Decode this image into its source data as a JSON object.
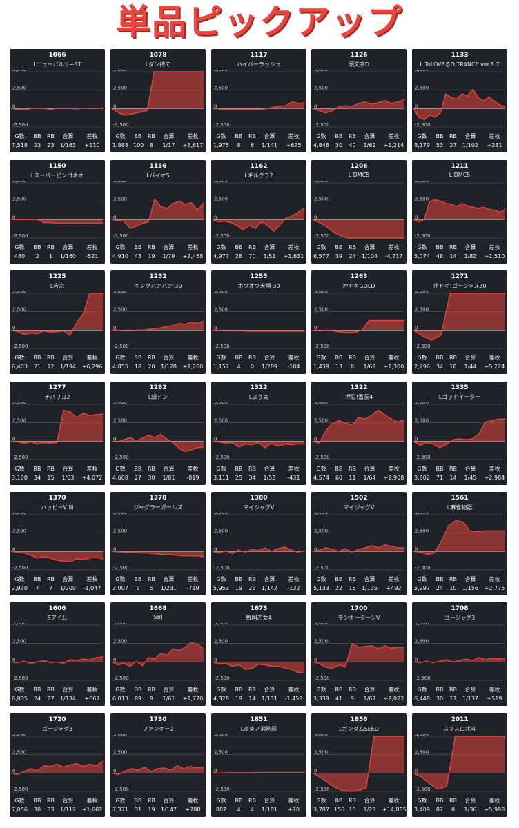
{
  "page_title": "単品ピックアップ",
  "stat_headers": [
    "G数",
    "BB",
    "RB",
    "合算",
    "差枚"
  ],
  "y_ticks": [
    "5,000",
    "2,500",
    "0",
    "-2,500"
  ],
  "colors": {
    "background": "#1f2229",
    "line": "#e2463c",
    "fill": "#e2463c",
    "grid": "#5a5e66",
    "title": "#e8463f"
  },
  "chart_data": [
    {
      "type": "area",
      "id": "1066",
      "name": "Lニューパルサ−BT",
      "ylim": [
        -2500,
        5000
      ],
      "y": [
        0,
        -100,
        -200,
        0,
        50,
        0,
        -100,
        0,
        0,
        0,
        -50,
        50,
        0,
        0,
        100
      ],
      "stats": {
        "g": "7,518",
        "bb": "23",
        "rb": "23",
        "gosan": "1/163",
        "samai": "+110"
      }
    },
    {
      "type": "area",
      "id": "1078",
      "name": "Lダン持て",
      "ylim": [
        -2500,
        5000
      ],
      "y": [
        0,
        -600,
        -900,
        -700,
        -500,
        -300,
        5000,
        5000,
        5000,
        5000,
        5000,
        5000,
        5000,
        5000
      ],
      "stats": {
        "g": "1,888",
        "bb": "100",
        "rb": "8",
        "gosan": "1/17",
        "samai": "+5,617"
      }
    },
    {
      "type": "area",
      "id": "1117",
      "name": "ハイパーラッシュ",
      "ylim": [
        -2500,
        5000
      ],
      "y": [
        0,
        -50,
        -100,
        -100,
        -100,
        -100,
        -100,
        -100,
        -100,
        0,
        200,
        300,
        400,
        900,
        700,
        800
      ],
      "stats": {
        "g": "1,975",
        "bb": "8",
        "rb": "6",
        "gosan": "1/141",
        "samai": "+625"
      }
    },
    {
      "type": "area",
      "id": "1126",
      "name": "頭文字D",
      "ylim": [
        -2500,
        5000
      ],
      "y": [
        0,
        -300,
        -600,
        -300,
        200,
        400,
        300,
        700,
        900,
        600,
        800,
        1100,
        700,
        900,
        1200
      ],
      "stats": {
        "g": "4,848",
        "bb": "30",
        "rb": "40",
        "gosan": "1/69",
        "samai": "+1,214"
      }
    },
    {
      "type": "area",
      "id": "1133",
      "name": "L ToLOVEるD TRANCE ver.8.7",
      "ylim": [
        -2500,
        5000
      ],
      "y": [
        0,
        -1200,
        -1500,
        -900,
        -1200,
        -600,
        2000,
        1500,
        1300,
        2000,
        1700,
        2600,
        1500,
        1000,
        1600,
        1000,
        500,
        200
      ],
      "stats": {
        "g": "8,179",
        "bb": "53",
        "rb": "27",
        "gosan": "1/102",
        "samai": "+231"
      }
    },
    {
      "type": "area",
      "id": "1150",
      "name": "Lスーパービンゴネオ",
      "ylim": [
        -2500,
        5000
      ],
      "y": [
        0,
        0,
        0,
        0,
        0,
        -400,
        -400,
        -500,
        -500,
        -500,
        -500,
        -500,
        -500,
        -500,
        -500
      ],
      "stats": {
        "g": "480",
        "bb": "2",
        "rb": "1",
        "gosan": "1/160",
        "samai": "-521"
      }
    },
    {
      "type": "area",
      "id": "1156",
      "name": "Lバイオ5",
      "ylim": [
        -2500,
        5000
      ],
      "y": [
        0,
        -100,
        -200,
        -1200,
        -900,
        -500,
        -300,
        2800,
        1800,
        1500,
        2200,
        2500,
        2100,
        2300,
        1300,
        2300
      ],
      "stats": {
        "g": "4,910",
        "bb": "43",
        "rb": "19",
        "gosan": "1/79",
        "samai": "+2,468"
      }
    },
    {
      "type": "area",
      "id": "1162",
      "name": "Lギルクラ2",
      "ylim": [
        -2500,
        5000
      ],
      "y": [
        0,
        -300,
        -200,
        -400,
        -800,
        -1400,
        -800,
        -1200,
        -300,
        -800,
        -1600,
        -700,
        200,
        500,
        1000,
        1600
      ],
      "stats": {
        "g": "4,977",
        "bb": "28",
        "rb": "70",
        "gosan": "1/51",
        "samai": "+1,631"
      }
    },
    {
      "type": "area",
      "id": "1206",
      "name": "L DMC5",
      "ylim": [
        -2500,
        5000
      ],
      "y": [
        0,
        -400,
        -1000,
        -1700,
        -2200,
        -2500,
        -2500,
        -2500,
        -2500,
        -2500,
        -2500,
        -2500,
        -2500,
        -2500
      ],
      "stats": {
        "g": "6,577",
        "bb": "39",
        "rb": "24",
        "gosan": "1/104",
        "samai": "-4,717"
      }
    },
    {
      "type": "area",
      "id": "1211",
      "name": "L DMC5",
      "ylim": [
        -2500,
        5000
      ],
      "y": [
        0,
        -300,
        0,
        2500,
        2700,
        2500,
        2200,
        2100,
        1800,
        2200,
        1900,
        1700,
        1500,
        1700,
        1400,
        1300,
        1000,
        1400
      ],
      "stats": {
        "g": "5,074",
        "bb": "48",
        "rb": "14",
        "gosan": "1/82",
        "samai": "+1,510"
      }
    },
    {
      "type": "area",
      "id": "1225",
      "name": "L吉宗",
      "ylim": [
        -2500,
        5000
      ],
      "y": [
        0,
        -200,
        -600,
        -400,
        -500,
        -100,
        -300,
        -200,
        -100,
        -700,
        1000,
        2200,
        5000,
        5000,
        5000
      ],
      "stats": {
        "g": "6,403",
        "bb": "21",
        "rb": "12",
        "gosan": "1/194",
        "samai": "+6,296"
      }
    },
    {
      "type": "area",
      "id": "1252",
      "name": "キングハナハナ-30",
      "ylim": [
        -2500,
        5000
      ],
      "y": [
        0,
        0,
        -100,
        -100,
        0,
        0,
        100,
        200,
        300,
        500,
        600,
        900,
        800,
        1100,
        900,
        1200
      ],
      "stats": {
        "g": "4,855",
        "bb": "18",
        "rb": "20",
        "gosan": "1/128",
        "samai": "+1,200"
      }
    },
    {
      "type": "area",
      "id": "1255",
      "name": "ホウオウ天翔-30",
      "ylim": [
        -2500,
        5000
      ],
      "y": [
        0,
        -50,
        -100,
        -100,
        -100,
        -150,
        -150,
        -150,
        -150,
        -150,
        -150,
        -150,
        -150,
        -150
      ],
      "stats": {
        "g": "1,157",
        "bb": "4",
        "rb": "0",
        "gosan": "1/289",
        "samai": "-184"
      }
    },
    {
      "type": "area",
      "id": "1263",
      "name": "沖ドキGOLD",
      "ylim": [
        -2500,
        5000
      ],
      "y": [
        0,
        -100,
        0,
        -100,
        -300,
        -400,
        -300,
        0,
        1300,
        1300,
        1300,
        1300,
        1300,
        1300
      ],
      "stats": {
        "g": "1,439",
        "bb": "13",
        "rb": "8",
        "gosan": "1/69",
        "samai": "+1,300"
      }
    },
    {
      "type": "area",
      "id": "1271",
      "name": "沖ドキ!ゴージャス30",
      "ylim": [
        -2500,
        5000
      ],
      "y": [
        0,
        -800,
        -1400,
        -700,
        5000,
        5000,
        5000,
        5000,
        5000,
        5000,
        5000
      ],
      "stats": {
        "g": "2,296",
        "bb": "34",
        "rb": "18",
        "gosan": "1/44",
        "samai": "+5,224"
      }
    },
    {
      "type": "area",
      "id": "1277",
      "name": "チバリヨ2",
      "ylim": [
        -2500,
        5000
      ],
      "y": [
        0,
        -100,
        -300,
        -100,
        -400,
        -200,
        -300,
        -200,
        4200,
        4000,
        3200,
        3800,
        3500,
        3600,
        3700
      ],
      "stats": {
        "g": "3,100",
        "bb": "34",
        "rb": "15",
        "gosan": "1/63",
        "samai": "+4,072"
      }
    },
    {
      "type": "area",
      "id": "1282",
      "name": "L緑ドン",
      "ylim": [
        -2500,
        5000
      ],
      "y": [
        0,
        -100,
        200,
        500,
        0,
        400,
        800,
        500,
        900,
        300,
        -200,
        -1000,
        -1400,
        -1200,
        -900,
        -800
      ],
      "stats": {
        "g": "4,608",
        "bb": "27",
        "rb": "30",
        "gosan": "1/81",
        "samai": "-819"
      }
    },
    {
      "type": "area",
      "id": "1312",
      "name": "Lよう実",
      "ylim": [
        -2500,
        5000
      ],
      "y": [
        0,
        -100,
        -300,
        -200,
        -800,
        -400,
        -500,
        -200,
        -900,
        -300,
        -700,
        -400,
        -500,
        -400,
        -400
      ],
      "stats": {
        "g": "3,111",
        "bb": "25",
        "rb": "34",
        "gosan": "1/53",
        "samai": "-431"
      }
    },
    {
      "type": "area",
      "id": "1322",
      "name": "押忍!番長4",
      "ylim": [
        -2500,
        5000
      ],
      "y": [
        0,
        -300,
        1400,
        2400,
        2800,
        2500,
        2200,
        3200,
        3000,
        3500,
        4200,
        3600,
        3000,
        2600,
        2900
      ],
      "stats": {
        "g": "4,574",
        "bb": "60",
        "rb": "11",
        "gosan": "1/64",
        "samai": "+2,908"
      }
    },
    {
      "type": "area",
      "id": "1335",
      "name": "Lゴッドイーター",
      "ylim": [
        -2500,
        5000
      ],
      "y": [
        0,
        -600,
        -200,
        -400,
        -900,
        -500,
        200,
        300,
        200,
        300,
        1000,
        2600,
        2800,
        3000,
        3000
      ],
      "stats": {
        "g": "3,802",
        "bb": "71",
        "rb": "14",
        "gosan": "1/45",
        "samai": "+2,984"
      }
    },
    {
      "type": "area",
      "id": "1370",
      "name": "ハッピーV III",
      "ylim": [
        -2500,
        5000
      ],
      "y": [
        0,
        -100,
        -200,
        -500,
        -900,
        -700,
        -900,
        -1200,
        -1300,
        -1400,
        -1000,
        -1100,
        -900,
        -800,
        -1000
      ],
      "stats": {
        "g": "2,930",
        "bb": "7",
        "rb": "7",
        "gosan": "1/209",
        "samai": "-1,047"
      }
    },
    {
      "type": "area",
      "id": "1378",
      "name": "ジャグラーガールズ",
      "ylim": [
        -2500,
        5000
      ],
      "y": [
        0,
        -50,
        -100,
        -100,
        -200,
        -200,
        -300,
        -400,
        -400,
        -500,
        -600,
        -600,
        -600,
        -700
      ],
      "stats": {
        "g": "3,007",
        "bb": "8",
        "rb": "5",
        "gosan": "1/231",
        "samai": "-719"
      }
    },
    {
      "type": "area",
      "id": "1380",
      "name": "マイジャグV",
      "ylim": [
        -2500,
        5000
      ],
      "y": [
        0,
        -200,
        100,
        -300,
        200,
        -100,
        300,
        100,
        500,
        0,
        400,
        600,
        200,
        -100,
        100
      ],
      "stats": {
        "g": "5,953",
        "bb": "19",
        "rb": "23",
        "gosan": "1/142",
        "samai": "-132"
      }
    },
    {
      "type": "area",
      "id": "1502",
      "name": "マイジャグV",
      "ylim": [
        -2500,
        5000
      ],
      "y": [
        0,
        200,
        500,
        300,
        0,
        400,
        -100,
        300,
        500,
        800,
        500,
        900,
        700,
        500,
        500
      ],
      "stats": {
        "g": "5,133",
        "bb": "22",
        "rb": "16",
        "gosan": "1/135",
        "samai": "+492"
      }
    },
    {
      "type": "area",
      "id": "1561",
      "name": "L麻雀物語",
      "ylim": [
        -2500,
        5000
      ],
      "y": [
        0,
        -100,
        -400,
        -200,
        1500,
        3500,
        4200,
        4000,
        2800,
        2700,
        2800,
        2800,
        2800,
        2800
      ],
      "stats": {
        "g": "5,297",
        "bb": "24",
        "rb": "10",
        "gosan": "1/156",
        "samai": "+2,775"
      }
    },
    {
      "type": "area",
      "id": "1606",
      "name": "Sアイム",
      "ylim": [
        -2500,
        5000
      ],
      "y": [
        0,
        -100,
        100,
        -200,
        0,
        200,
        -100,
        0,
        -200,
        300,
        200,
        400,
        300,
        600,
        700
      ],
      "stats": {
        "g": "6,835",
        "bb": "24",
        "rb": "27",
        "gosan": "1/134",
        "samai": "+667"
      }
    },
    {
      "type": "area",
      "id": "1668",
      "name": "SBJ",
      "ylim": [
        -2500,
        5000
      ],
      "y": [
        0,
        -400,
        -200,
        -600,
        100,
        -500,
        600,
        400,
        1200,
        900,
        1800,
        1600,
        2000,
        2600,
        2400,
        1800
      ],
      "stats": {
        "g": "6,013",
        "bb": "89",
        "rb": "9",
        "gosan": "1/61",
        "samai": "+1,770"
      }
    },
    {
      "type": "area",
      "id": "1673",
      "name": "戦国乙女4",
      "ylim": [
        -2500,
        5000
      ],
      "y": [
        0,
        -300,
        -200,
        -600,
        -400,
        -1000,
        -900,
        -300,
        -400,
        -600,
        -600,
        -800,
        -1000,
        -1400,
        -1500
      ],
      "stats": {
        "g": "4,328",
        "bb": "19",
        "rb": "14",
        "gosan": "1/131",
        "samai": "-1,459"
      }
    },
    {
      "type": "area",
      "id": "1700",
      "name": "モンキーターンV",
      "ylim": [
        -2500,
        5000
      ],
      "y": [
        0,
        -200,
        -700,
        -900,
        -400,
        -700,
        2500,
        2000,
        2100,
        2200,
        1800,
        2200,
        1900,
        2000,
        2000
      ],
      "stats": {
        "g": "3,339",
        "bb": "41",
        "rb": "9",
        "gosan": "1/67",
        "samai": "+2,022"
      }
    },
    {
      "type": "area",
      "id": "1708",
      "name": "ゴージャグ3",
      "ylim": [
        -2500,
        5000
      ],
      "y": [
        0,
        -100,
        100,
        -100,
        100,
        300,
        0,
        200,
        400,
        200,
        600,
        300,
        500,
        400,
        500
      ],
      "stats": {
        "g": "6,448",
        "bb": "30",
        "rb": "17",
        "gosan": "1/137",
        "samai": "+519"
      }
    },
    {
      "type": "area",
      "id": "1720",
      "name": "ゴージャグ3",
      "ylim": [
        -2500,
        5000
      ],
      "y": [
        0,
        -200,
        200,
        600,
        300,
        1000,
        900,
        1200,
        800,
        1100,
        1300,
        900,
        1200,
        1000,
        1600
      ],
      "stats": {
        "g": "7,056",
        "bb": "30",
        "rb": "33",
        "gosan": "1/112",
        "samai": "+1,602"
      }
    },
    {
      "type": "area",
      "id": "1730",
      "name": "ファンキー2",
      "ylim": [
        -2500,
        5000
      ],
      "y": [
        0,
        -200,
        200,
        600,
        400,
        800,
        200,
        600,
        700,
        400,
        1000,
        600,
        900,
        700,
        800
      ],
      "stats": {
        "g": "7,371",
        "bb": "31",
        "rb": "19",
        "gosan": "1/147",
        "samai": "+788"
      }
    },
    {
      "type": "area",
      "id": "1851",
      "name": "L炎炎ノ消防隊",
      "ylim": [
        -2500,
        5000
      ],
      "y": [
        0,
        0,
        50,
        50,
        50,
        50,
        70,
        70,
        70,
        70,
        70,
        70,
        70
      ],
      "stats": {
        "g": "807",
        "bb": "4",
        "rb": "4",
        "gosan": "1/101",
        "samai": "+70"
      }
    },
    {
      "type": "area",
      "id": "1856",
      "name": "LガンダムSEED",
      "ylim": [
        -2500,
        5000
      ],
      "y": [
        0,
        -600,
        -1300,
        -2000,
        -2400,
        -2500,
        -2400,
        -2000,
        5000,
        5000,
        5000,
        5000,
        5000
      ],
      "stats": {
        "g": "3,787",
        "bb": "156",
        "rb": "10",
        "gosan": "1/23",
        "samai": "+14,835"
      }
    },
    {
      "type": "area",
      "id": "2011",
      "name": "スマスロ北斗",
      "ylim": [
        -2500,
        5000
      ],
      "y": [
        0,
        -600,
        -1500,
        -2200,
        -1800,
        5000,
        5000,
        5000,
        5000,
        5000,
        5000,
        5000
      ],
      "stats": {
        "g": "3,409",
        "bb": "87",
        "rb": "8",
        "gosan": "1/36",
        "samai": "+5,998"
      }
    }
  ]
}
